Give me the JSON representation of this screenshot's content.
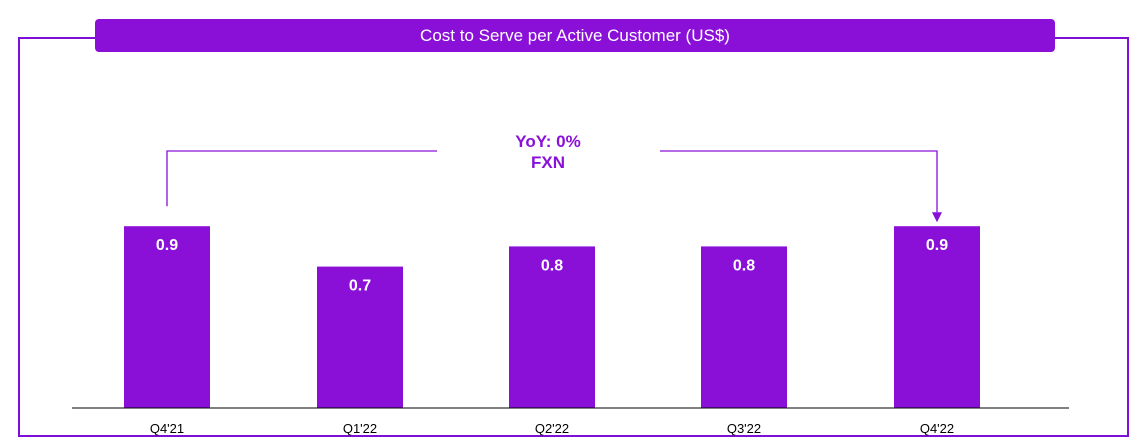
{
  "chart_data": {
    "type": "bar",
    "title": "Cost to Serve per Active Customer (US$)",
    "categories": [
      "Q4'21",
      "Q1'22",
      "Q2'22",
      "Q3'22",
      "Q4'22"
    ],
    "values": [
      0.9,
      0.7,
      0.8,
      0.8,
      0.9
    ],
    "data_labels": [
      "0.9",
      "0.7",
      "0.8",
      "0.8",
      "0.9"
    ],
    "xlabel": "",
    "ylabel": "",
    "grid": false,
    "annotation": {
      "line1": "YoY: 0%",
      "line2": "FXN",
      "from": "Q4'21",
      "to": "Q4'22"
    },
    "colors": {
      "bar": "#8A10D8",
      "label": "#FFFFFF",
      "annotation": "#8A10D8",
      "frame": "#7E0FD8"
    }
  }
}
